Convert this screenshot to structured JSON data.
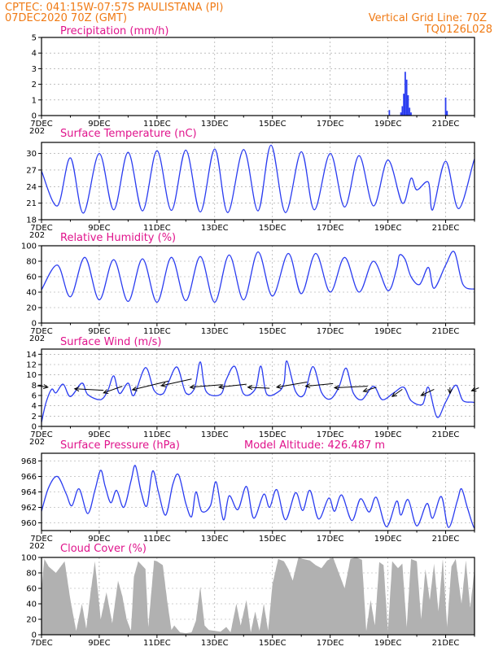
{
  "header": {
    "line1_left": "CPTEC:   041:15W-07:57S   PAULISTANA (PI)",
    "line2_left": "07DEC2020 70Z (GMT)",
    "line1_right": "Vertical Grid Line: 70Z",
    "line2_right": "TQ0126L028"
  },
  "x_axis": {
    "tick_labels": [
      "7DEC",
      "9DEC",
      "11DEC",
      "13DEC",
      "15DEC",
      "17DEC",
      "19DEC",
      "21DEC"
    ],
    "tick_days": [
      0,
      2,
      4,
      6,
      8,
      10,
      12,
      14
    ],
    "total_days": 15,
    "year_fragment": "202"
  },
  "colors": {
    "line": "#2a3cf0",
    "bar": "#2a3cf0",
    "cloud": "#a8a8a8",
    "title": "#e0148c",
    "header": "#f07a14"
  },
  "chart_data": [
    {
      "id": "precip",
      "type": "bar",
      "title": "Precipitation (mm/h)",
      "ylim": [
        0,
        5
      ],
      "yticks": [
        0,
        1,
        2,
        3,
        4,
        5
      ],
      "points": [
        [
          12.05,
          0.35
        ],
        [
          12.45,
          0.2
        ],
        [
          12.5,
          0.6
        ],
        [
          12.55,
          1.4
        ],
        [
          12.6,
          2.8
        ],
        [
          12.65,
          2.3
        ],
        [
          12.7,
          1.3
        ],
        [
          12.75,
          0.5
        ],
        [
          12.8,
          0.2
        ],
        [
          14.0,
          1.15
        ],
        [
          14.05,
          0.3
        ]
      ],
      "grid": true
    },
    {
      "id": "temp",
      "type": "line",
      "title": "Surface Temperature (nC)",
      "ylim": [
        18,
        32
      ],
      "yticks": [
        18,
        21,
        24,
        27,
        30
      ],
      "min_max": [
        [
          0.0,
          26.8
        ],
        [
          0.55,
          20.5
        ],
        [
          1.0,
          29.2
        ],
        [
          1.45,
          19.2
        ],
        [
          2.0,
          30.0
        ],
        [
          2.5,
          19.8
        ],
        [
          3.0,
          30.2
        ],
        [
          3.5,
          19.6
        ],
        [
          4.0,
          30.5
        ],
        [
          4.5,
          19.7
        ],
        [
          5.0,
          30.6
        ],
        [
          5.5,
          19.4
        ],
        [
          6.0,
          30.8
        ],
        [
          6.45,
          19.3
        ],
        [
          7.0,
          30.7
        ],
        [
          7.5,
          19.6
        ],
        [
          7.95,
          31.5
        ],
        [
          8.45,
          19.3
        ],
        [
          9.0,
          30.3
        ],
        [
          9.45,
          19.8
        ],
        [
          10.0,
          30.0
        ],
        [
          10.5,
          20.3
        ],
        [
          11.0,
          29.6
        ],
        [
          11.5,
          20.5
        ],
        [
          12.0,
          28.8
        ],
        [
          12.5,
          21.0
        ],
        [
          12.8,
          25.5
        ],
        [
          13.0,
          23.4
        ],
        [
          13.4,
          24.8
        ],
        [
          13.55,
          19.8
        ],
        [
          14.0,
          28.6
        ],
        [
          14.45,
          20.0
        ],
        [
          15.0,
          29.0
        ],
        [
          15.1,
          27.6
        ]
      ],
      "grid": true
    },
    {
      "id": "rh",
      "type": "line",
      "title": "Relative Humidity (%)",
      "ylim": [
        0,
        100
      ],
      "yticks": [
        0,
        20,
        40,
        60,
        80,
        100
      ],
      "min_max": [
        [
          0.0,
          43
        ],
        [
          0.55,
          75
        ],
        [
          1.0,
          34
        ],
        [
          1.5,
          85
        ],
        [
          2.0,
          30
        ],
        [
          2.5,
          82
        ],
        [
          3.0,
          28
        ],
        [
          3.5,
          83
        ],
        [
          4.0,
          27
        ],
        [
          4.5,
          85
        ],
        [
          5.0,
          29
        ],
        [
          5.5,
          86
        ],
        [
          6.0,
          27
        ],
        [
          6.5,
          88
        ],
        [
          7.0,
          30
        ],
        [
          7.5,
          92
        ],
        [
          8.0,
          35
        ],
        [
          8.55,
          90
        ],
        [
          9.0,
          38
        ],
        [
          9.5,
          90
        ],
        [
          10.0,
          40
        ],
        [
          10.5,
          85
        ],
        [
          11.0,
          40
        ],
        [
          11.5,
          80
        ],
        [
          12.0,
          42
        ],
        [
          12.3,
          70
        ],
        [
          12.4,
          88
        ],
        [
          12.6,
          82
        ],
        [
          12.8,
          60
        ],
        [
          13.1,
          50
        ],
        [
          13.4,
          72
        ],
        [
          13.6,
          45
        ],
        [
          14.0,
          75
        ],
        [
          14.3,
          92
        ],
        [
          14.6,
          50
        ],
        [
          15.0,
          44
        ],
        [
          15.1,
          46
        ]
      ],
      "grid": true
    },
    {
      "id": "wind",
      "type": "line",
      "title": "Surface Wind (m/s)",
      "ylim": [
        0,
        15
      ],
      "yticks": [
        0,
        2,
        4,
        6,
        8,
        10,
        12,
        14
      ],
      "min_max": [
        [
          0.0,
          0.8
        ],
        [
          0.15,
          4.5
        ],
        [
          0.35,
          7.2
        ],
        [
          0.5,
          6.5
        ],
        [
          0.75,
          8.2
        ],
        [
          1.0,
          5.8
        ],
        [
          1.4,
          8.4
        ],
        [
          1.6,
          6.2
        ],
        [
          2.05,
          5.2
        ],
        [
          2.3,
          7.0
        ],
        [
          2.5,
          9.8
        ],
        [
          2.7,
          6.4
        ],
        [
          3.0,
          8.4
        ],
        [
          3.2,
          6.0
        ],
        [
          3.6,
          11.4
        ],
        [
          3.9,
          7.0
        ],
        [
          4.2,
          6.3
        ],
        [
          4.4,
          8.6
        ],
        [
          4.7,
          11.5
        ],
        [
          5.0,
          6.5
        ],
        [
          5.3,
          7.4
        ],
        [
          5.5,
          12.5
        ],
        [
          5.7,
          6.8
        ],
        [
          6.2,
          6.2
        ],
        [
          6.4,
          9.1
        ],
        [
          6.7,
          11.6
        ],
        [
          7.0,
          6.3
        ],
        [
          7.4,
          7.2
        ],
        [
          7.6,
          11.7
        ],
        [
          7.8,
          6.3
        ],
        [
          8.2,
          6.7
        ],
        [
          8.4,
          8.4
        ],
        [
          8.5,
          12.7
        ],
        [
          8.8,
          6.8
        ],
        [
          9.1,
          6.2
        ],
        [
          9.4,
          11.6
        ],
        [
          9.7,
          6.6
        ],
        [
          10.0,
          5.3
        ],
        [
          10.3,
          7.6
        ],
        [
          10.55,
          11.3
        ],
        [
          10.8,
          6.5
        ],
        [
          11.1,
          5.2
        ],
        [
          11.5,
          7.8
        ],
        [
          11.8,
          5.2
        ],
        [
          12.2,
          6.5
        ],
        [
          12.55,
          7.6
        ],
        [
          12.8,
          5.0
        ],
        [
          13.2,
          4.3
        ],
        [
          13.4,
          7.6
        ],
        [
          13.7,
          1.8
        ],
        [
          14.0,
          4.7
        ],
        [
          14.35,
          8.0
        ],
        [
          14.6,
          5.0
        ],
        [
          15.0,
          4.6
        ],
        [
          15.1,
          3.0
        ]
      ],
      "barbs_start_xy": [
        [
          0.22,
          7.6
        ],
        [
          1.15,
          7.3
        ],
        [
          2.15,
          6.5
        ],
        [
          3.15,
          7.1
        ],
        [
          4.15,
          7.9
        ],
        [
          5.15,
          7.6
        ],
        [
          6.15,
          7.6
        ],
        [
          7.15,
          7.6
        ],
        [
          8.15,
          7.6
        ],
        [
          9.15,
          7.8
        ],
        [
          10.15,
          7.5
        ],
        [
          11.15,
          6.8
        ],
        [
          12.15,
          5.8
        ],
        [
          13.15,
          6.0
        ],
        [
          14.15,
          6.4
        ],
        [
          14.9,
          6.9
        ]
      ],
      "barbs_end_xy": [
        [
          -0.15,
          7.9
        ],
        [
          2.15,
          7.0
        ],
        [
          2.8,
          7.8
        ],
        [
          4.4,
          8.8
        ],
        [
          5.2,
          9.2
        ],
        [
          6.25,
          8.1
        ],
        [
          7.1,
          8.2
        ],
        [
          7.9,
          7.4
        ],
        [
          9.2,
          8.6
        ],
        [
          10.1,
          8.3
        ],
        [
          11.3,
          7.8
        ],
        [
          11.6,
          7.6
        ],
        [
          12.5,
          7.2
        ],
        [
          13.6,
          7.2
        ],
        [
          14.15,
          7.6
        ],
        [
          15.15,
          7.5
        ]
      ],
      "grid": true
    },
    {
      "id": "pressure",
      "type": "line",
      "title": "Surface Pressure (hPa)",
      "annotation": "Model Altitude: 426.487 m",
      "ylim": [
        959,
        969
      ],
      "yticks": [
        960,
        962,
        964,
        966,
        968
      ],
      "min_max": [
        [
          0.0,
          961.5
        ],
        [
          0.25,
          964.6
        ],
        [
          0.55,
          966.0
        ],
        [
          0.85,
          963.8
        ],
        [
          1.05,
          962.2
        ],
        [
          1.3,
          964.4
        ],
        [
          1.6,
          961.2
        ],
        [
          1.85,
          964.2
        ],
        [
          2.05,
          966.8
        ],
        [
          2.2,
          964.8
        ],
        [
          2.4,
          962.6
        ],
        [
          2.6,
          964.2
        ],
        [
          2.85,
          962.0
        ],
        [
          3.1,
          965.4
        ],
        [
          3.25,
          967.4
        ],
        [
          3.45,
          964.0
        ],
        [
          3.65,
          962.2
        ],
        [
          3.85,
          966.7
        ],
        [
          4.05,
          964.0
        ],
        [
          4.3,
          961.0
        ],
        [
          4.55,
          965.0
        ],
        [
          4.75,
          966.2
        ],
        [
          5.0,
          962.5
        ],
        [
          5.2,
          960.8
        ],
        [
          5.35,
          964.0
        ],
        [
          5.55,
          961.5
        ],
        [
          5.85,
          962.2
        ],
        [
          6.05,
          965.3
        ],
        [
          6.3,
          960.4
        ],
        [
          6.5,
          963.5
        ],
        [
          6.8,
          961.7
        ],
        [
          7.1,
          964.7
        ],
        [
          7.35,
          960.6
        ],
        [
          7.7,
          963.7
        ],
        [
          7.9,
          962.0
        ],
        [
          8.15,
          964.3
        ],
        [
          8.45,
          960.4
        ],
        [
          8.8,
          963.9
        ],
        [
          9.05,
          961.6
        ],
        [
          9.3,
          964.2
        ],
        [
          9.6,
          960.5
        ],
        [
          9.95,
          963.2
        ],
        [
          10.15,
          961.5
        ],
        [
          10.4,
          963.6
        ],
        [
          10.75,
          960.3
        ],
        [
          11.05,
          963.1
        ],
        [
          11.35,
          961.4
        ],
        [
          11.6,
          963.3
        ],
        [
          11.95,
          959.5
        ],
        [
          12.3,
          962.8
        ],
        [
          12.45,
          961.0
        ],
        [
          12.7,
          963.0
        ],
        [
          13.0,
          959.6
        ],
        [
          13.35,
          962.5
        ],
        [
          13.55,
          960.6
        ],
        [
          13.85,
          963.4
        ],
        [
          14.1,
          959.4
        ],
        [
          14.4,
          962.8
        ],
        [
          14.55,
          964.4
        ],
        [
          14.75,
          962.0
        ],
        [
          15.0,
          959.3
        ],
        [
          15.1,
          961.1
        ]
      ],
      "grid": true
    },
    {
      "id": "cloud",
      "type": "area",
      "title": "Cloud Cover (%)",
      "ylim": [
        0,
        100
      ],
      "yticks": [
        0,
        20,
        40,
        60,
        80,
        100
      ],
      "points": [
        [
          0.0,
          60
        ],
        [
          0.1,
          98
        ],
        [
          0.25,
          88
        ],
        [
          0.5,
          80
        ],
        [
          0.8,
          95
        ],
        [
          1.0,
          45
        ],
        [
          1.2,
          5
        ],
        [
          1.4,
          40
        ],
        [
          1.55,
          8
        ],
        [
          1.7,
          55
        ],
        [
          1.85,
          95
        ],
        [
          2.05,
          20
        ],
        [
          2.25,
          55
        ],
        [
          2.45,
          15
        ],
        [
          2.65,
          70
        ],
        [
          2.8,
          50
        ],
        [
          2.95,
          20
        ],
        [
          3.1,
          5
        ],
        [
          3.2,
          75
        ],
        [
          3.35,
          95
        ],
        [
          3.6,
          85
        ],
        [
          3.7,
          10
        ],
        [
          3.9,
          96
        ],
        [
          4.0,
          95
        ],
        [
          4.2,
          90
        ],
        [
          4.35,
          45
        ],
        [
          4.5,
          6
        ],
        [
          4.6,
          12
        ],
        [
          4.8,
          3
        ],
        [
          5.0,
          2
        ],
        [
          5.2,
          3
        ],
        [
          5.35,
          18
        ],
        [
          5.5,
          62
        ],
        [
          5.65,
          12
        ],
        [
          5.8,
          6
        ],
        [
          6.0,
          5
        ],
        [
          6.2,
          4
        ],
        [
          6.4,
          10
        ],
        [
          6.55,
          3
        ],
        [
          6.75,
          40
        ],
        [
          6.9,
          12
        ],
        [
          7.1,
          45
        ],
        [
          7.25,
          3
        ],
        [
          7.4,
          30
        ],
        [
          7.55,
          5
        ],
        [
          7.7,
          40
        ],
        [
          7.85,
          5
        ],
        [
          8.0,
          65
        ],
        [
          8.2,
          98
        ],
        [
          8.4,
          95
        ],
        [
          8.55,
          85
        ],
        [
          8.7,
          70
        ],
        [
          8.9,
          100
        ],
        [
          9.05,
          98
        ],
        [
          9.3,
          96
        ],
        [
          9.5,
          90
        ],
        [
          9.7,
          86
        ],
        [
          9.9,
          96
        ],
        [
          10.1,
          100
        ],
        [
          10.3,
          80
        ],
        [
          10.5,
          60
        ],
        [
          10.7,
          98
        ],
        [
          10.9,
          100
        ],
        [
          11.1,
          97
        ],
        [
          11.25,
          5
        ],
        [
          11.4,
          45
        ],
        [
          11.55,
          12
        ],
        [
          11.7,
          94
        ],
        [
          11.85,
          90
        ],
        [
          12.0,
          5
        ],
        [
          12.15,
          95
        ],
        [
          12.35,
          86
        ],
        [
          12.5,
          92
        ],
        [
          12.65,
          10
        ],
        [
          12.8,
          98
        ],
        [
          13.0,
          95
        ],
        [
          13.15,
          20
        ],
        [
          13.3,
          85
        ],
        [
          13.45,
          45
        ],
        [
          13.6,
          92
        ],
        [
          13.75,
          30
        ],
        [
          13.9,
          98
        ],
        [
          14.05,
          10
        ],
        [
          14.2,
          88
        ],
        [
          14.35,
          98
        ],
        [
          14.55,
          40
        ],
        [
          14.7,
          96
        ],
        [
          14.85,
          35
        ],
        [
          15.0,
          85
        ],
        [
          15.1,
          75
        ]
      ],
      "grid": true
    }
  ]
}
